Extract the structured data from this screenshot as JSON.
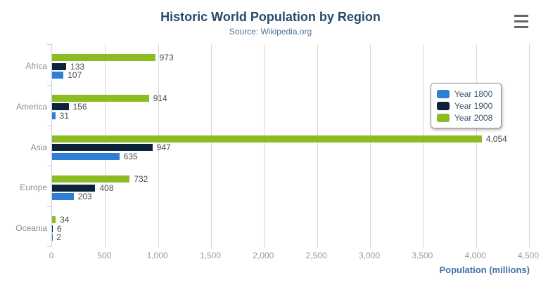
{
  "chart_data": {
    "type": "bar",
    "title": "Historic World Population by Region",
    "subtitle": "Source: Wikipedia.org",
    "categories": [
      "Africa",
      "America",
      "Asia",
      "Europe",
      "Oceania"
    ],
    "series": [
      {
        "name": "Year 1800",
        "color": "#2f7ed8",
        "values": [
          107,
          31,
          635,
          203,
          2
        ]
      },
      {
        "name": "Year 1900",
        "color": "#0d233a",
        "values": [
          133,
          156,
          947,
          408,
          6
        ]
      },
      {
        "name": "Year 2008",
        "color": "#8bbc21",
        "values": [
          973,
          914,
          4054,
          732,
          34
        ]
      }
    ],
    "data_labels": [
      [
        "107",
        "31",
        "635",
        "203",
        "2"
      ],
      [
        "133",
        "156",
        "947",
        "408",
        "6"
      ],
      [
        "973",
        "914",
        "4,054",
        "732",
        "34"
      ]
    ],
    "xlabel": "Population (millions)",
    "ylabel": "",
    "xlim": [
      0,
      4500
    ],
    "xticks": [
      0,
      500,
      1000,
      1500,
      2000,
      2500,
      3000,
      3500,
      4000,
      4500
    ],
    "xtick_labels": [
      "0",
      "500",
      "1,000",
      "1,500",
      "2,000",
      "2,500",
      "3,000",
      "3,500",
      "4,000",
      "4,500"
    ],
    "grid": true,
    "legend_position": "right-floating",
    "colors": {
      "title": "#274b6d",
      "subtitle": "#4d759e",
      "axis_title": "#4572a7",
      "axis_line": "#c0d0e0",
      "gridline": "#d8d8d8",
      "labels": "#8d8d8d"
    }
  },
  "export_menu": {
    "icon": "hamburger-icon"
  }
}
